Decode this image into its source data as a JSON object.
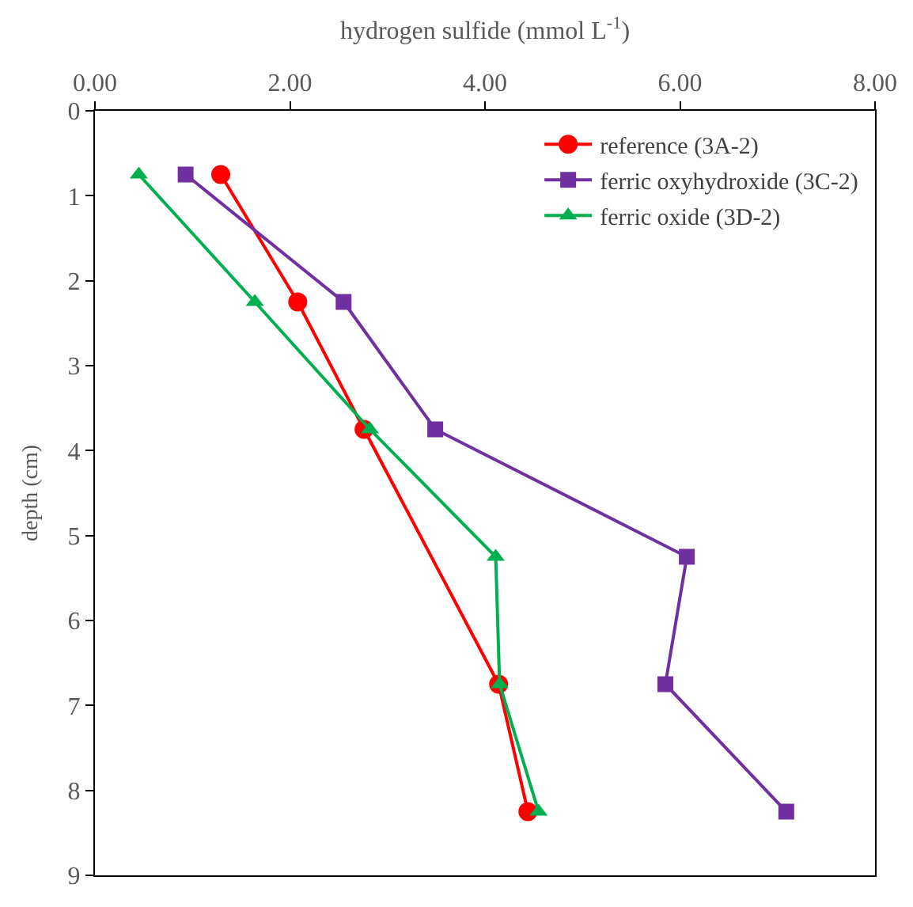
{
  "chart_data": {
    "type": "line",
    "xlabel": "hydrogen sulfide (mmol L$^{-1}$)",
    "ylabel": "depth (cm)",
    "xlim": [
      0,
      8
    ],
    "xticks": [
      {
        "value": 0,
        "label": "0.00"
      },
      {
        "value": 2,
        "label": "2.00"
      },
      {
        "value": 4,
        "label": "4.00"
      },
      {
        "value": 6,
        "label": "6.00"
      },
      {
        "value": 8,
        "label": "8.00"
      }
    ],
    "ylim": [
      9,
      0
    ],
    "yticks": [
      0,
      1,
      2,
      3,
      4,
      5,
      6,
      7,
      8,
      9
    ],
    "legend": "top right",
    "series": [
      {
        "name": "reference (3A-2)",
        "color": "#ff0000",
        "marker": "circle",
        "x": [
          1.29,
          2.08,
          2.76,
          4.14,
          4.44
        ],
        "values": [
          0.75,
          2.25,
          3.75,
          6.75,
          8.25
        ]
      },
      {
        "name": "ferric oxyhydroxide (3C-2)",
        "color": "#7030a0",
        "marker": "square",
        "x": [
          0.93,
          2.55,
          3.49,
          6.07,
          5.85,
          7.09
        ],
        "values": [
          0.75,
          2.25,
          3.75,
          5.25,
          6.75,
          8.25
        ]
      },
      {
        "name": "ferric oxide (3D-2)",
        "color": "#00b050",
        "marker": "triangle",
        "x": [
          0.45,
          1.64,
          2.82,
          4.11,
          4.15,
          4.55
        ],
        "values": [
          0.75,
          2.25,
          3.75,
          5.25,
          6.75,
          8.25
        ]
      }
    ]
  }
}
